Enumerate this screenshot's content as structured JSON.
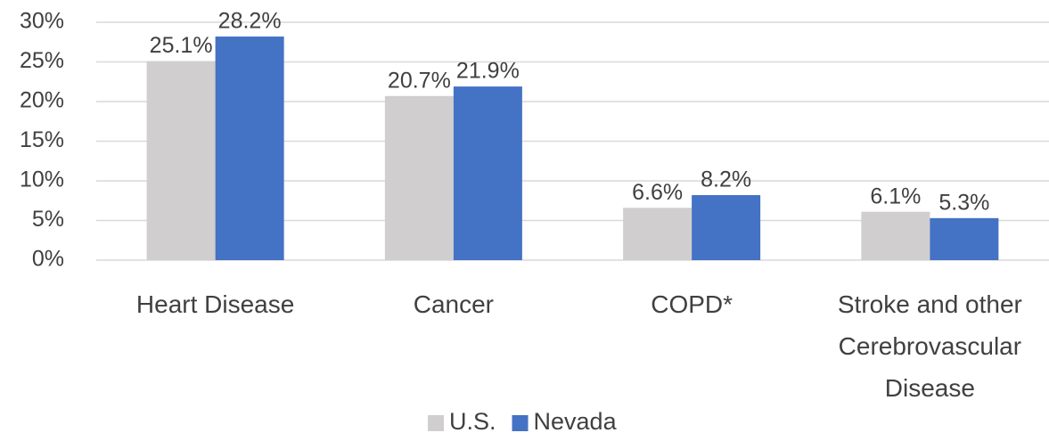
{
  "chart_data": {
    "type": "bar",
    "categories": [
      "Heart Disease",
      "Cancer",
      "COPD*",
      "Stroke and other Cerebrovascular Disease"
    ],
    "series": [
      {
        "name": "U.S.",
        "color": "#d0cece",
        "values": [
          25.1,
          20.7,
          6.6,
          6.1
        ],
        "value_labels": [
          "25.1%",
          "20.7%",
          "6.6%",
          "6.1%"
        ]
      },
      {
        "name": "Nevada",
        "color": "#4472c4",
        "values": [
          28.2,
          21.9,
          8.2,
          5.3
        ],
        "value_labels": [
          "28.2%",
          "21.9%",
          "8.2%",
          "5.3%"
        ]
      }
    ],
    "ylim": [
      0,
      30
    ],
    "yticks": [
      {
        "value": 0,
        "label": "0%"
      },
      {
        "value": 5,
        "label": "5%"
      },
      {
        "value": 10,
        "label": "10%"
      },
      {
        "value": 15,
        "label": "15%"
      },
      {
        "value": 20,
        "label": "20%"
      },
      {
        "value": 25,
        "label": "25%"
      },
      {
        "value": 30,
        "label": "30%"
      }
    ],
    "grid": true,
    "legend": "bottom"
  }
}
